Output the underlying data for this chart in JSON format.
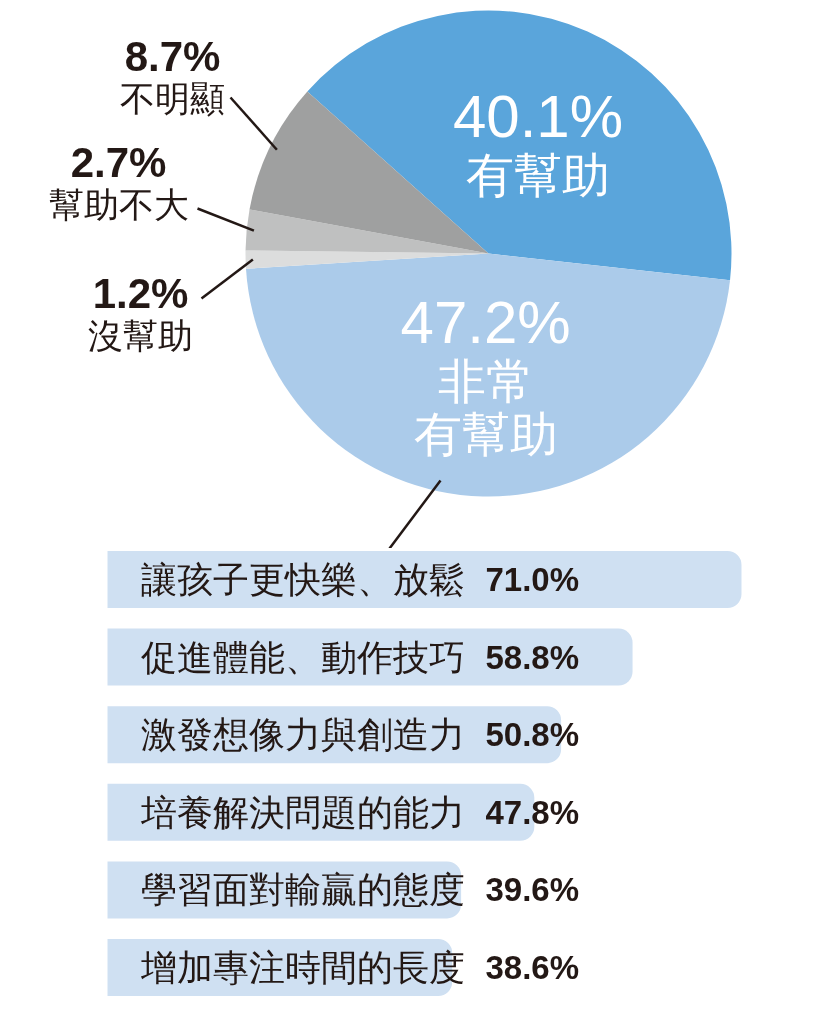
{
  "chart_data": [
    {
      "type": "pie",
      "categories": [
        "有幫助",
        "非常有幫助",
        "沒幫助",
        "幫助不大",
        "不明顯"
      ],
      "values": [
        40.1,
        47.2,
        1.2,
        2.7,
        8.7
      ],
      "colors": [
        "#5aa5db",
        "#abcbea",
        "#dcdddd",
        "#bfc0c0",
        "#9fa0a0"
      ],
      "value_labels": [
        "40.1%",
        "47.2%",
        "1.2%",
        "2.7%",
        "8.7%"
      ]
    },
    {
      "type": "bar",
      "orientation": "horizontal",
      "categories": [
        "讓孩子更快樂、放鬆",
        "促進體能、動作技巧",
        "激發想像力與創造力",
        "培養解決問題的能力",
        "學習面對輸贏的態度",
        "增加專注時間的長度"
      ],
      "values": [
        71.0,
        58.8,
        50.8,
        47.8,
        39.6,
        38.6
      ],
      "color": "#cfe0f2",
      "value_labels": [
        "71.0%",
        "58.8%",
        "50.8%",
        "47.8%",
        "39.6%",
        "38.6%"
      ]
    }
  ]
}
